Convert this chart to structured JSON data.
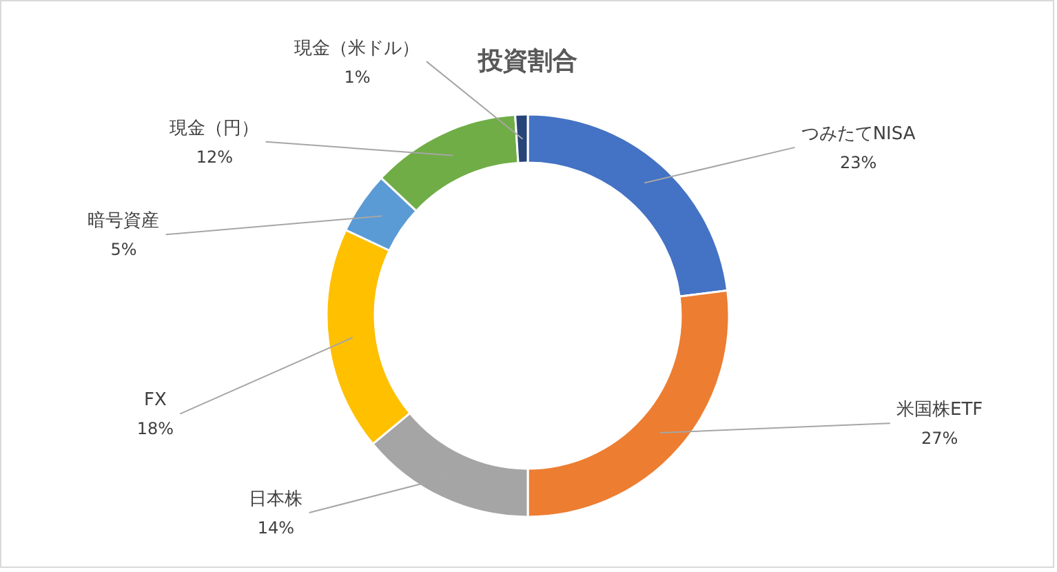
{
  "chart_data": {
    "type": "donut",
    "title": "投資割合",
    "categories": [
      "つみたてNISA",
      "米国株ETF",
      "日本株",
      "FX",
      "暗号資産",
      "現金（円）",
      "現金（米ドル）"
    ],
    "values": [
      23,
      27,
      14,
      18,
      5,
      12,
      1
    ],
    "colors": [
      "#4472c4",
      "#ed7d31",
      "#a5a5a5",
      "#ffc000",
      "#5b9bd5",
      "#70ad47",
      "#264478"
    ],
    "value_labels": [
      "23%",
      "27%",
      "14%",
      "18%",
      "5%",
      "12%",
      "1%"
    ]
  }
}
